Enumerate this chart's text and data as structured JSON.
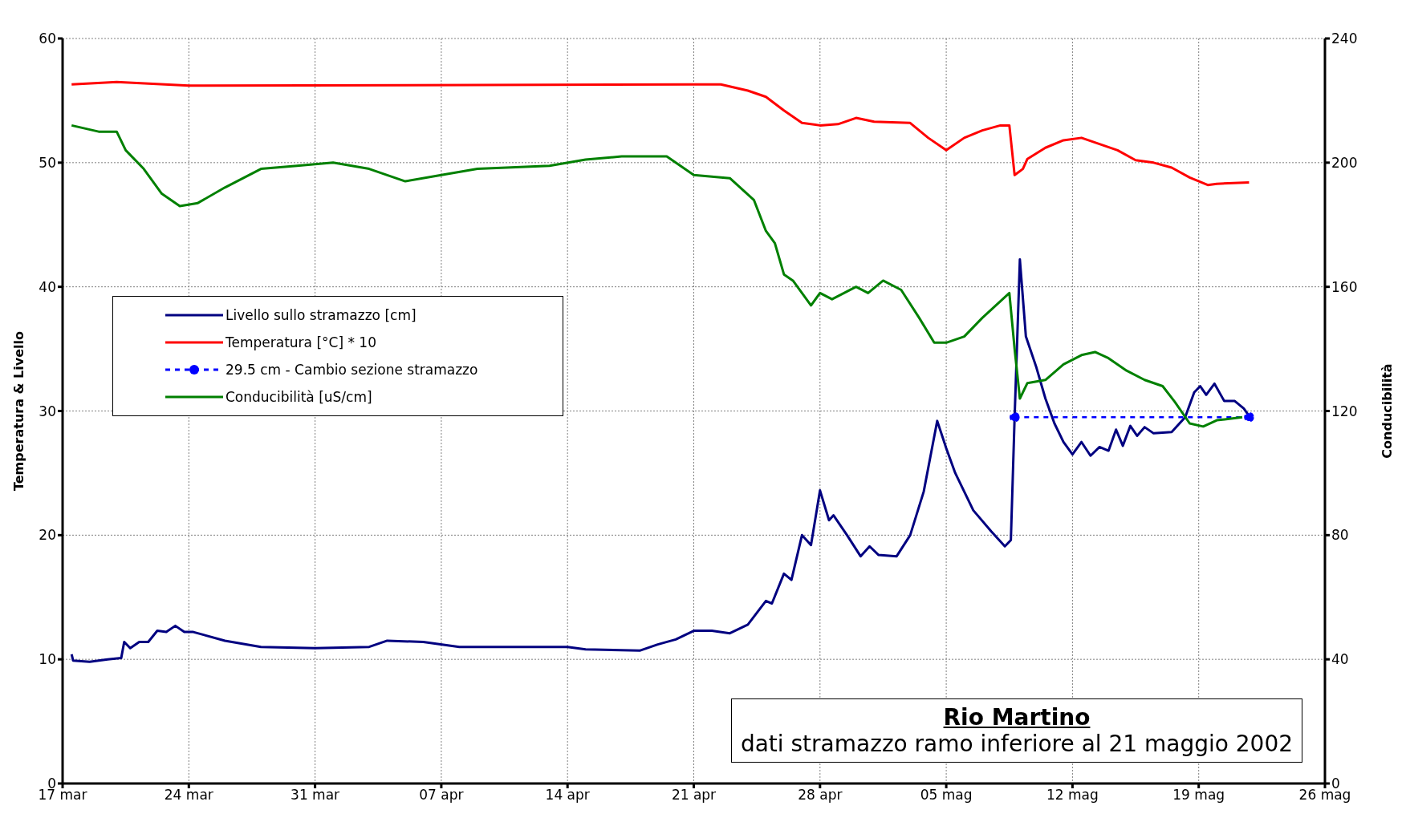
{
  "chart_data": {
    "type": "line",
    "ylabel": "Temperatura & Livello",
    "y2label": "Conducibilità",
    "xlim": [
      "2002-03-17",
      "2002-05-26"
    ],
    "xticks": [
      {
        "value": "2002-03-17",
        "label": "17 mar"
      },
      {
        "value": "2002-03-24",
        "label": "24 mar"
      },
      {
        "value": "2002-03-31",
        "label": "31 mar"
      },
      {
        "value": "2002-04-07",
        "label": "07 apr"
      },
      {
        "value": "2002-04-14",
        "label": "14 apr"
      },
      {
        "value": "2002-04-21",
        "label": "21 apr"
      },
      {
        "value": "2002-04-28",
        "label": "28 apr"
      },
      {
        "value": "2002-05-05",
        "label": "05 mag"
      },
      {
        "value": "2002-05-12",
        "label": "12 mag"
      },
      {
        "value": "2002-05-19",
        "label": "19 mag"
      },
      {
        "value": "2002-05-26",
        "label": "26 mag"
      }
    ],
    "ylim": [
      0,
      60
    ],
    "yticks": [
      0,
      10,
      20,
      30,
      40,
      50,
      60
    ],
    "y2lim": [
      0,
      240
    ],
    "y2ticks": [
      0,
      40,
      80,
      120,
      160,
      200,
      240
    ],
    "grid": true,
    "legend": "top left",
    "line_style": "solid",
    "marker": "none",
    "annotations": [
      "Rio Martino",
      "dati stramazzo ramo inferiore al 21 maggio 2002"
    ],
    "series": [
      {
        "name": "Livello sullo stramazzo [cm]",
        "color": "#000080",
        "x": [
          "2002-03-17T12:00",
          "2002-03-17T14:00",
          "2002-03-18T12:00",
          "2002-03-19T12:00",
          "2002-03-20T06:00",
          "2002-03-20T10:00",
          "2002-03-20T18:00",
          "2002-03-21T06:00",
          "2002-03-21T18:00",
          "2002-03-22T06:00",
          "2002-03-22T18:00",
          "2002-03-23T06:00",
          "2002-03-23T18:00",
          "2002-03-24T06:00",
          "2002-03-26",
          "2002-03-28",
          "2002-03-31",
          "2002-04-03",
          "2002-04-04",
          "2002-04-06",
          "2002-04-08",
          "2002-04-14",
          "2002-04-15",
          "2002-04-18",
          "2002-04-19",
          "2002-04-20",
          "2002-04-21",
          "2002-04-22",
          "2002-04-23",
          "2002-04-24",
          "2002-04-25",
          "2002-04-25T08:00",
          "2002-04-26",
          "2002-04-26T10:00",
          "2002-04-27",
          "2002-04-27T12:00",
          "2002-04-28",
          "2002-04-28T12:00",
          "2002-04-28T18:00",
          "2002-04-29T12:00",
          "2002-04-30T06:00",
          "2002-04-30T18:00",
          "2002-05-01T06:00",
          "2002-05-02T06:00",
          "2002-05-03",
          "2002-05-03T18:00",
          "2002-05-04T06:00",
          "2002-05-04T12:00",
          "2002-05-05",
          "2002-05-05T12:00",
          "2002-05-06T12:00",
          "2002-05-07T12:00",
          "2002-05-08T06:00",
          "2002-05-08T14:00",
          "2002-05-08T19:00",
          "2002-05-09T02:00",
          "2002-05-09T10:00",
          "2002-05-10",
          "2002-05-10T12:00",
          "2002-05-11",
          "2002-05-11T12:00",
          "2002-05-12",
          "2002-05-12T12:00",
          "2002-05-13",
          "2002-05-13T12:00",
          "2002-05-14",
          "2002-05-14T10:00",
          "2002-05-14T19:00",
          "2002-05-15T05:00",
          "2002-05-15T14:00",
          "2002-05-16",
          "2002-05-16T12:00",
          "2002-05-17T12:00",
          "2002-05-18T06:00",
          "2002-05-18T18:00",
          "2002-05-19T02:00",
          "2002-05-19T10:00",
          "2002-05-19T21:00",
          "2002-05-20T10:00",
          "2002-05-21",
          "2002-05-21T12:00",
          "2002-05-21T19:00"
        ],
        "values": [
          10.4,
          9.9,
          9.8,
          10.0,
          10.1,
          11.4,
          10.9,
          11.4,
          11.4,
          12.3,
          12.2,
          12.7,
          12.2,
          12.2,
          11.5,
          11.0,
          10.9,
          11.0,
          11.5,
          11.4,
          11.0,
          11.0,
          10.8,
          10.7,
          11.2,
          11.6,
          12.3,
          12.3,
          12.1,
          12.8,
          14.7,
          14.5,
          16.9,
          16.4,
          20.0,
          19.2,
          23.6,
          21.2,
          21.6,
          20.0,
          18.3,
          19.1,
          18.4,
          18.3,
          20.0,
          23.5,
          27.3,
          29.2,
          27.0,
          25.0,
          22.0,
          20.3,
          19.1,
          19.6,
          29.5,
          42.2,
          36.0,
          33.5,
          31.0,
          29.0,
          27.5,
          26.5,
          27.5,
          26.4,
          27.1,
          26.8,
          28.5,
          27.2,
          28.8,
          28.0,
          28.7,
          28.2,
          28.3,
          29.5,
          31.5,
          32.0,
          31.3,
          32.2,
          30.8,
          30.8,
          30.2,
          29.6
        ]
      },
      {
        "name": "Temperatura [°C] * 10",
        "color": "#ff0000",
        "x": [
          "2002-03-17T12:00",
          "2002-03-20",
          "2002-03-24",
          "2002-04-21",
          "2002-04-22T12:00",
          "2002-04-24",
          "2002-04-25",
          "2002-04-26",
          "2002-04-27",
          "2002-04-28",
          "2002-04-29",
          "2002-04-30",
          "2002-05-01",
          "2002-05-03",
          "2002-05-04",
          "2002-05-05",
          "2002-05-06",
          "2002-05-07",
          "2002-05-08",
          "2002-05-08T12:00",
          "2002-05-08T19:00",
          "2002-05-09T06:00",
          "2002-05-09T12:00",
          "2002-05-10T12:00",
          "2002-05-11T12:00",
          "2002-05-12T12:00",
          "2002-05-13T12:00",
          "2002-05-14T12:00",
          "2002-05-15T12:00",
          "2002-05-16T12:00",
          "2002-05-17T12:00",
          "2002-05-18T12:00",
          "2002-05-19T12:00",
          "2002-05-20",
          "2002-05-21T19:00"
        ],
        "values": [
          56.3,
          56.5,
          56.2,
          56.3,
          56.3,
          55.8,
          55.3,
          54.2,
          53.2,
          53.0,
          53.1,
          53.6,
          53.3,
          53.2,
          52.0,
          51.0,
          52.0,
          52.6,
          53.0,
          53.0,
          49.0,
          49.5,
          50.3,
          51.2,
          51.8,
          52.0,
          51.5,
          51.0,
          50.2,
          50.0,
          49.6,
          48.8,
          48.2,
          48.3,
          48.4
        ]
      },
      {
        "name": "29.5 cm - Cambio sezione stramazzo",
        "color": "#0000ff",
        "line_style": "dashed",
        "marker": "circle",
        "x": [
          "2002-05-08T19:00",
          "2002-05-21T19:00"
        ],
        "values": [
          29.5,
          29.5
        ]
      },
      {
        "name": "Conducibilità [uS/cm]",
        "color": "#008000",
        "axis": "y2",
        "x": [
          "2002-03-17T12:00",
          "2002-03-19",
          "2002-03-20",
          "2002-03-20T12:00",
          "2002-03-21T12:00",
          "2002-03-22T12:00",
          "2002-03-23T12:00",
          "2002-03-24T12:00",
          "2002-03-26",
          "2002-03-28",
          "2002-03-30",
          "2002-04-01",
          "2002-04-03",
          "2002-04-05",
          "2002-04-07",
          "2002-04-09",
          "2002-04-13",
          "2002-04-15",
          "2002-04-17",
          "2002-04-19T12:00",
          "2002-04-21",
          "2002-04-23",
          "2002-04-24T08:00",
          "2002-04-25",
          "2002-04-25T12:00",
          "2002-04-26",
          "2002-04-26T12:00",
          "2002-04-27T12:00",
          "2002-04-28",
          "2002-04-28T16:00",
          "2002-04-30",
          "2002-04-30T16:00",
          "2002-05-01T12:00",
          "2002-05-02T12:00",
          "2002-05-03T12:00",
          "2002-05-04T08:00",
          "2002-05-05",
          "2002-05-06",
          "2002-05-07",
          "2002-05-08T12:00",
          "2002-05-08T19:00",
          "2002-05-09T02:00",
          "2002-05-09T12:00",
          "2002-05-10T12:00",
          "2002-05-11T12:00",
          "2002-05-12T12:00",
          "2002-05-13T06:00",
          "2002-05-14",
          "2002-05-15",
          "2002-05-16",
          "2002-05-17",
          "2002-05-17T16:00",
          "2002-05-18T12:00",
          "2002-05-19T06:00",
          "2002-05-20",
          "2002-05-21T10:00"
        ],
        "values": [
          212,
          210,
          210,
          204,
          198,
          190,
          186,
          187,
          192,
          198,
          199,
          200,
          198,
          194,
          196,
          198,
          199,
          201,
          202,
          202,
          196,
          195,
          188,
          178,
          174,
          164,
          162,
          154,
          158,
          156,
          160,
          158,
          162,
          159,
          150,
          142,
          142,
          144,
          150,
          158,
          140,
          124,
          129,
          130,
          135,
          138,
          139,
          137,
          133,
          130,
          128,
          123,
          116,
          115,
          117,
          118
        ]
      }
    ]
  }
}
